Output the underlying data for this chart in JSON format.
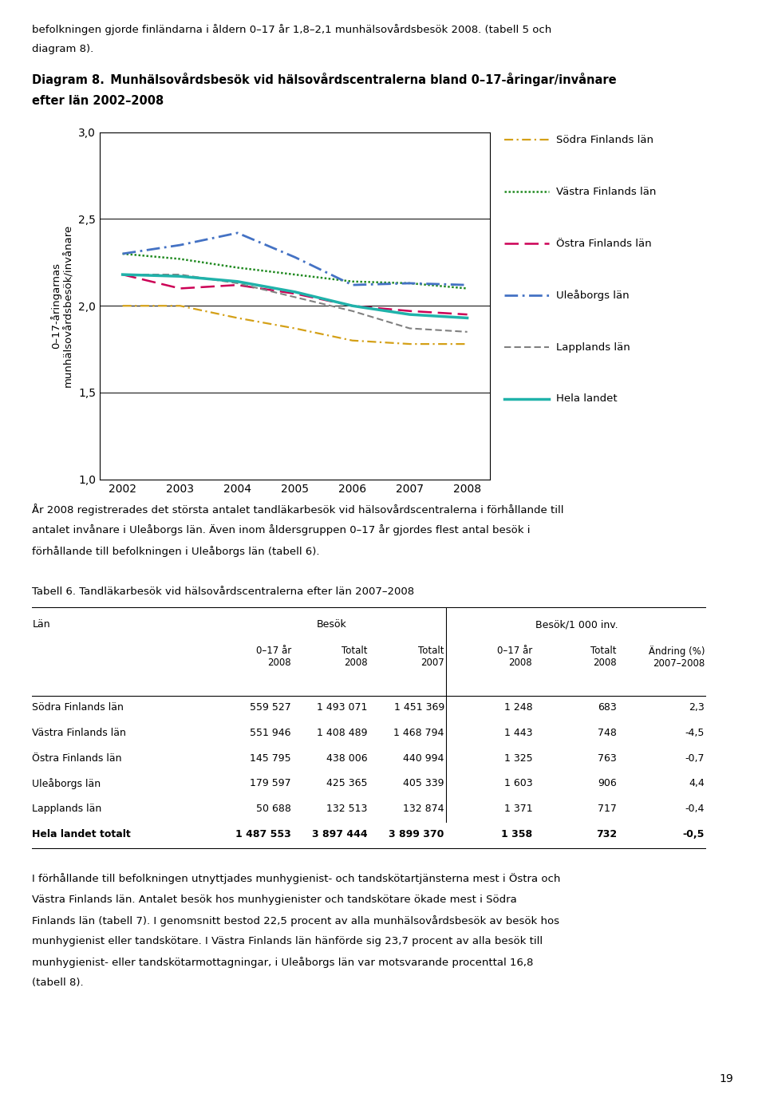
{
  "intro_text_1": "befolkningen gjorde finländarna i åldern 0–17 år 1,8–2,1 munhälsovårdsbesök 2008. (tabell 5 och",
  "intro_text_2": "diagram 8).",
  "diagram_title_1": "Diagram 8. Munhälsovårdsbesök vid hälsovårdscentralerna bland 0–17-åringar/invånare",
  "diagram_title_2": "efter län 2002–2008",
  "ylabel": "0–17-åringarnas\nmunhälsovårdsbesök/invånare",
  "years": [
    2002,
    2003,
    2004,
    2005,
    2006,
    2007,
    2008
  ],
  "ylim": [
    1.0,
    3.0
  ],
  "yticks": [
    1.0,
    1.5,
    2.0,
    2.5,
    3.0
  ],
  "sodra": [
    2.0,
    2.0,
    1.93,
    1.87,
    1.8,
    1.78,
    1.78
  ],
  "vastra": [
    2.3,
    2.27,
    2.22,
    2.18,
    2.14,
    2.13,
    2.1
  ],
  "ostra": [
    2.18,
    2.1,
    2.12,
    2.07,
    2.0,
    1.97,
    1.95
  ],
  "ule": [
    2.3,
    2.35,
    2.42,
    2.28,
    2.12,
    2.13,
    2.12
  ],
  "lapp": [
    2.18,
    2.18,
    2.13,
    2.05,
    1.97,
    1.87,
    1.85
  ],
  "hela": [
    2.18,
    2.17,
    2.14,
    2.08,
    2.0,
    1.95,
    1.93
  ],
  "legend_names": [
    "Södra Finlands län",
    "Västra Finlands län",
    "Östra Finlands län",
    "Uleåborgs län",
    "Lapplands län",
    "Hela landet"
  ],
  "legend_colors": [
    "#D4A017",
    "#228B22",
    "#CC0055",
    "#4472C4",
    "#808080",
    "#20B2AA"
  ],
  "para1_lines": [
    "År 2008 registrerades det största antalet tandläkarbesök vid hälsovårdscentralerna i förhållande till",
    "antalet invånare i Uleåborgs län. Även inom åldersgruppen 0–17 år gjordes flest antal besök i",
    "förhållande till befolkningen i Uleåborgs län (tabell 6)."
  ],
  "table_title": "Tabell 6. Tandläkarbesök vid hälsovårdscentralerna efter län 2007–2008",
  "table_rows": [
    [
      "Södra Finlands län",
      "559 527",
      "1 493 071",
      "1 451 369",
      "1 248",
      "683",
      "2,3"
    ],
    [
      "Västra Finlands län",
      "551 946",
      "1 408 489",
      "1 468 794",
      "1 443",
      "748",
      "-4,5"
    ],
    [
      "Östra Finlands län",
      "145 795",
      "438 006",
      "440 994",
      "1 325",
      "763",
      "-0,7"
    ],
    [
      "Uleåborgs län",
      "179 597",
      "425 365",
      "405 339",
      "1 603",
      "906",
      "4,4"
    ],
    [
      "Lapplands län",
      "50 688",
      "132 513",
      "132 874",
      "1 371",
      "717",
      "-0,4"
    ],
    [
      "Hela landet totalt",
      "1 487 553",
      "3 897 444",
      "3 899 370",
      "1 358",
      "732",
      "-0,5"
    ]
  ],
  "footer_lines": [
    "I förhållande till befolkningen utnyttjades munhygienist- och tandskötartjänsterna mest i Östra och",
    "Västra Finlands län. Antalet besök hos munhygienister och tandskötare ökade mest i Södra",
    "Finlands län (tabell 7). I genomsnitt bestod 22,5 procent av alla munhälsovårdsbesök av besök hos",
    "munhygienist eller tandskötare. I Västra Finlands län hänförde sig 23,7 procent av alla besök till",
    "munhygienist- eller tandskötarmottagningar, i Uleåborgs län var motsvarande procenttal 16,8",
    "(tabell 8)."
  ],
  "page_num": "19"
}
